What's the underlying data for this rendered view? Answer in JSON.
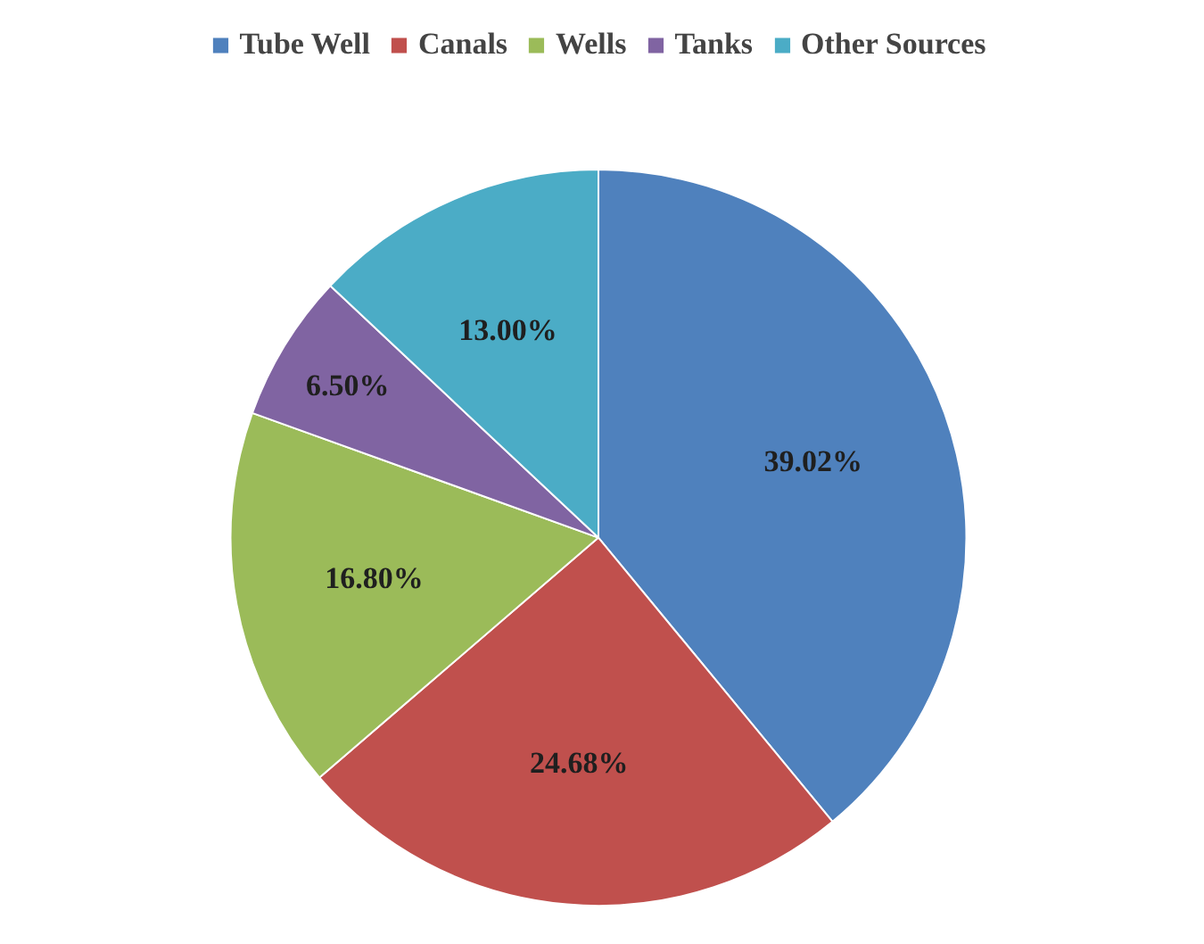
{
  "chart_data": {
    "type": "pie",
    "categories": [
      "Tube Well",
      "Canals",
      "Wells",
      "Tanks",
      "Other Sources"
    ],
    "values": [
      39.02,
      24.68,
      16.8,
      6.5,
      13.0
    ],
    "colors": [
      "#4f81bd",
      "#c0504d",
      "#9bbb59",
      "#8064a2",
      "#4bacc6"
    ],
    "value_labels": [
      "39.02%",
      "24.68%",
      "16.80%",
      "6.50%",
      "13.00%"
    ],
    "legend": "top"
  }
}
